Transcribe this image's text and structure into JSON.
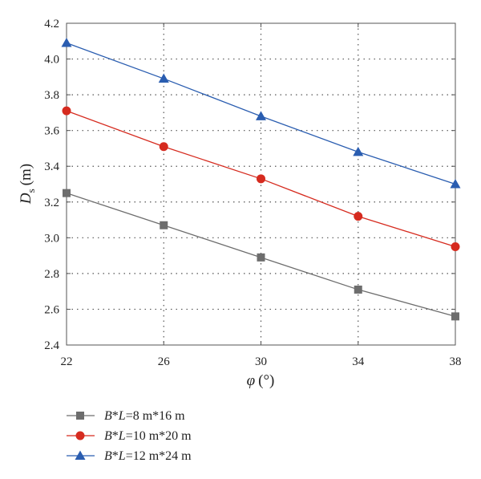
{
  "chart_data": {
    "type": "line",
    "x": [
      22,
      26,
      30,
      34,
      38
    ],
    "xlim": [
      22,
      38
    ],
    "ylim": [
      2.4,
      4.2
    ],
    "xticks": [
      "22",
      "26",
      "30",
      "34",
      "38"
    ],
    "yticks": [
      "2.4",
      "2.6",
      "2.8",
      "3.0",
      "3.2",
      "3.4",
      "3.6",
      "3.8",
      "4.0",
      "4.2"
    ],
    "xlabel": {
      "main": "φ",
      "unit": "(°)"
    },
    "ylabel": {
      "main": "D",
      "sub": "s",
      "unit": "(m)"
    },
    "grid": true,
    "legend_position": "bottom-left, below plot",
    "series": [
      {
        "name": "B*L=8 m*16 m",
        "legend": {
          "B": "B",
          "star1": "*",
          "L": "L",
          "rest": "=8 m*16 m"
        },
        "color": "#6d6d6d",
        "marker": "square",
        "values": [
          3.25,
          3.07,
          2.89,
          2.71,
          2.56
        ]
      },
      {
        "name": "B*L=10 m*20 m",
        "legend": {
          "B": "B",
          "star1": "*",
          "L": "L",
          "rest": "=10 m*20 m"
        },
        "color": "#d62b1f",
        "marker": "circle",
        "values": [
          3.71,
          3.51,
          3.33,
          3.12,
          2.95
        ]
      },
      {
        "name": "B*L=12 m*24 m",
        "legend": {
          "B": "B",
          "star1": "*",
          "L": "L",
          "rest": "=12 m*24 m"
        },
        "color": "#2a5db0",
        "marker": "triangle",
        "values": [
          4.09,
          3.89,
          3.68,
          3.48,
          3.3
        ]
      }
    ]
  }
}
